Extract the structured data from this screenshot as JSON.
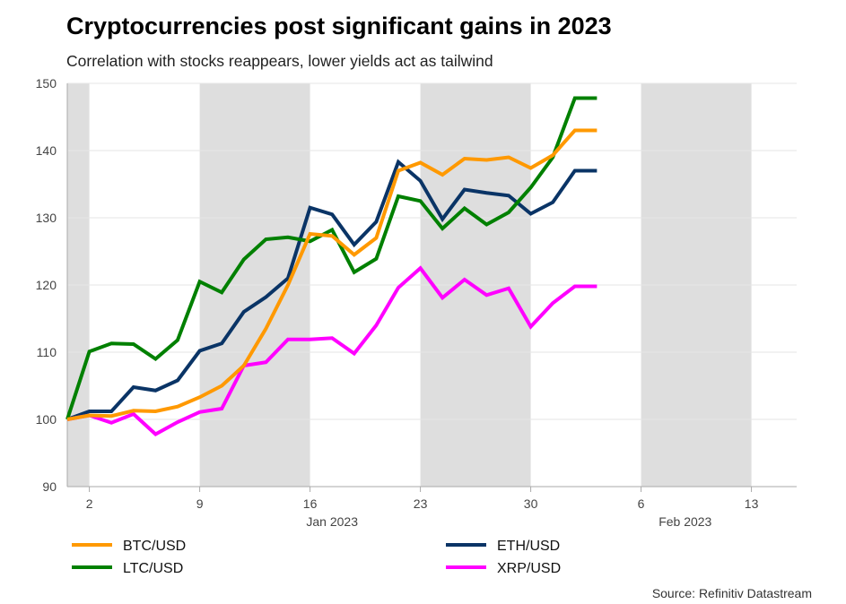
{
  "title": "Cryptocurrencies post significant gains in 2023",
  "subtitle": "Correlation with stocks reappears, lower yields act as tailwind",
  "source": "Source: Refinitiv Datastream",
  "chart_data": {
    "type": "line",
    "x_axis": "business days",
    "x": [
      "2022-12-30",
      "2023-01-02",
      "2023-01-03",
      "2023-01-04",
      "2023-01-05",
      "2023-01-06",
      "2023-01-09",
      "2023-01-10",
      "2023-01-11",
      "2023-01-12",
      "2023-01-13",
      "2023-01-16",
      "2023-01-17",
      "2023-01-18",
      "2023-01-19",
      "2023-01-20",
      "2023-01-23",
      "2023-01-24",
      "2023-01-25",
      "2023-01-26",
      "2023-01-27",
      "2023-01-30",
      "2023-01-31",
      "2023-02-01",
      "2023-02-02"
    ],
    "xlim": [
      "2022-12-30",
      "2023-02-15"
    ],
    "x_ticks": [
      {
        "date": "2023-01-02",
        "label": "2"
      },
      {
        "date": "2023-01-09",
        "label": "9"
      },
      {
        "date": "2023-01-16",
        "label": "16"
      },
      {
        "date": "2023-01-23",
        "label": "23"
      },
      {
        "date": "2023-01-30",
        "label": "30"
      },
      {
        "date": "2023-02-06",
        "label": "6"
      },
      {
        "date": "2023-02-13",
        "label": "13"
      }
    ],
    "month_labels": [
      {
        "date": "2023-01-17",
        "label": "Jan 2023"
      },
      {
        "date": "2023-02-08",
        "label": "Feb 2023"
      }
    ],
    "shaded_weeks": [
      [
        "2022-12-30",
        "2023-01-02"
      ],
      [
        "2023-01-09",
        "2023-01-16"
      ],
      [
        "2023-01-23",
        "2023-01-30"
      ],
      [
        "2023-02-06",
        "2023-02-13"
      ]
    ],
    "ylim": [
      90,
      150
    ],
    "y_ticks": [
      90,
      100,
      110,
      120,
      130,
      140,
      150
    ],
    "grid": true,
    "legend_placement": "bottom",
    "series": [
      {
        "name": "BTC/USD",
        "color": "#ff9900",
        "values": [
          100,
          100.6,
          100.5,
          101.3,
          101.2,
          101.9,
          103.3,
          105,
          108,
          113.5,
          120,
          127.6,
          127.3,
          124.5,
          127,
          137,
          138.2,
          136.4,
          138.8,
          138.6,
          139,
          137.4,
          139.3,
          143,
          143
        ]
      },
      {
        "name": "LTC/USD",
        "color": "#008000",
        "values": [
          100,
          110.1,
          111.3,
          111.2,
          109,
          111.8,
          120.5,
          118.9,
          123.8,
          126.8,
          127.1,
          126.5,
          128.2,
          121.9,
          123.9,
          133.2,
          132.5,
          128.4,
          131.4,
          129,
          130.8,
          134.5,
          139,
          147.8,
          147.8
        ]
      },
      {
        "name": "ETH/USD",
        "color": "#0a3466",
        "values": [
          100,
          101.2,
          101.2,
          104.8,
          104.3,
          105.8,
          110.2,
          111.3,
          116,
          118.2,
          121,
          131.5,
          130.5,
          126,
          129.4,
          138.3,
          135.5,
          129.8,
          134.2,
          133.7,
          133.3,
          130.6,
          132.3,
          137,
          137
        ]
      },
      {
        "name": "XRP/USD",
        "color": "#ff00ff",
        "values": [
          100,
          100.6,
          99.5,
          100.8,
          97.8,
          99.6,
          101.1,
          101.6,
          108,
          108.5,
          111.9,
          111.9,
          112.1,
          109.8,
          114,
          119.6,
          122.5,
          118.1,
          120.8,
          118.5,
          119.5,
          113.8,
          117.3,
          119.8,
          119.8
        ]
      }
    ]
  }
}
